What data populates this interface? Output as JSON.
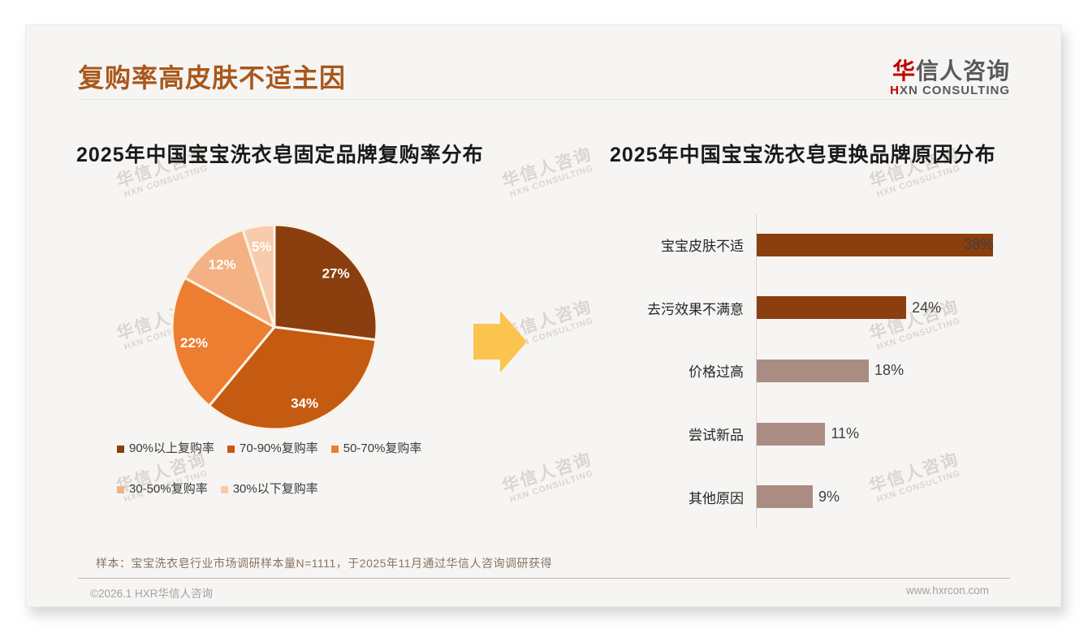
{
  "header": {
    "title": "复购率高皮肤不适主因"
  },
  "logo": {
    "cn_first": "华",
    "cn_rest": "信人咨询",
    "en_first": "H",
    "en_rest": "XN CONSULTING"
  },
  "watermark": {
    "line1": "华信人咨询",
    "line2": "HXN CONSULTING"
  },
  "arrow": {
    "color": "#FBC44E",
    "direction": "right"
  },
  "chart_data": [
    {
      "type": "pie",
      "title": "2025年中国宝宝洗衣皂固定品牌复购率分布",
      "labels": [
        "90%以上复购率",
        "70-90%复购率",
        "50-70%复购率",
        "30-50%复购率",
        "30%以下复购率"
      ],
      "values": [
        27,
        34,
        22,
        12,
        5
      ],
      "colors": [
        "#8B3E0E",
        "#C55A11",
        "#ED7D31",
        "#F4B183",
        "#F8CBAD"
      ],
      "value_suffix": "%",
      "start_angle_deg": -90,
      "direction": "clockwise",
      "separator_color": "#FAF2E4",
      "legend_position": "bottom"
    },
    {
      "type": "bar",
      "title": "2025年中国宝宝洗衣皂更换品牌原因分布",
      "orientation": "horizontal",
      "categories": [
        "宝宝皮肤不适",
        "去污效果不满意",
        "价格过高",
        "尝试新品",
        "其他原因"
      ],
      "values": [
        38,
        24,
        18,
        11,
        9
      ],
      "colors": [
        "#8B3E0E",
        "#8B3E0E",
        "#AB8C82",
        "#AB8C82",
        "#AB8C82"
      ],
      "value_suffix": "%",
      "xlim": [
        0,
        40
      ],
      "grid": false,
      "axis_color": "#D6D3D0"
    }
  ],
  "footer": {
    "note": "样本：宝宝洗衣皂行业市场调研样本量N=1111，于2025年11月通过华信人咨询调研获得",
    "copyright": "©2026.1 HXR华信人咨询",
    "website": "www.hxrcon.com"
  }
}
